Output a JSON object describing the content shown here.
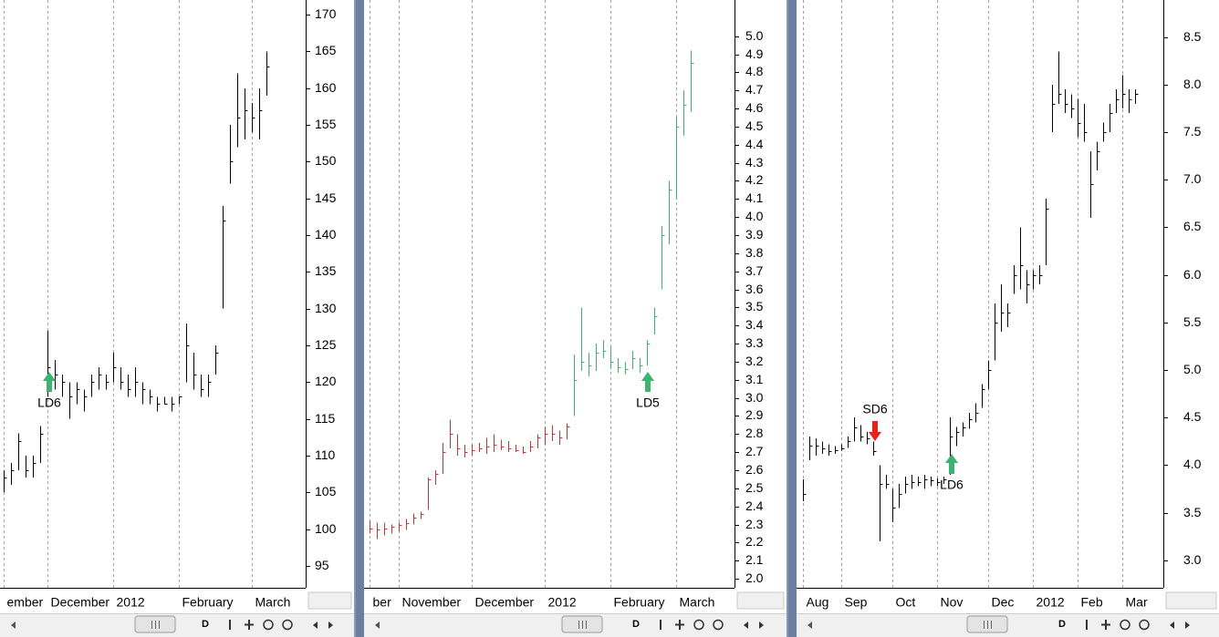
{
  "chart_data": [
    {
      "type": "ohlc",
      "categories": [
        "ember",
        null,
        null,
        null,
        null,
        null,
        "December",
        null,
        null,
        null,
        null,
        null,
        null,
        null,
        null,
        "2012",
        null,
        null,
        null,
        null,
        null,
        null,
        null,
        null,
        "February",
        null,
        null,
        null,
        null,
        null,
        null,
        null,
        null,
        null,
        "March",
        null,
        null
      ],
      "high": [
        108,
        109,
        113,
        110,
        110,
        114,
        127,
        123,
        121,
        120,
        120,
        119,
        121,
        122,
        121,
        124,
        122,
        121,
        122,
        120,
        119,
        118,
        118,
        118,
        118,
        128,
        124,
        121,
        121,
        125,
        144,
        155,
        162,
        160,
        158,
        160,
        165
      ],
      "low": [
        105,
        106,
        108,
        107,
        107,
        109,
        118,
        119,
        118,
        115,
        117,
        116,
        118,
        119,
        119,
        120,
        119,
        118,
        118,
        117,
        117,
        116,
        117,
        116,
        117,
        120,
        119,
        118,
        118,
        121,
        130,
        147,
        152,
        153,
        154,
        153,
        159
      ],
      "close": [
        107,
        108,
        112,
        108,
        109,
        113,
        122,
        121,
        120,
        118,
        119,
        118,
        120,
        121,
        120,
        122,
        120,
        119,
        120,
        119,
        118,
        117,
        117,
        117,
        118,
        125,
        121,
        119,
        120,
        124,
        142,
        150,
        156,
        157,
        156,
        157,
        163
      ],
      "color": "#000000",
      "ylim": [
        92,
        172
      ],
      "yticks": [
        95,
        100,
        105,
        110,
        115,
        120,
        125,
        130,
        135,
        140,
        145,
        150,
        155,
        160,
        165,
        170
      ],
      "grid": true,
      "annotations": [
        {
          "text": "LD6",
          "color": "#3cb371"
        }
      ]
    },
    {
      "type": "ohlc",
      "categories": [
        "ber",
        null,
        null,
        null,
        "November",
        null,
        null,
        null,
        null,
        null,
        null,
        null,
        null,
        null,
        "December",
        null,
        null,
        null,
        null,
        null,
        null,
        null,
        null,
        null,
        "2012",
        null,
        null,
        null,
        null,
        null,
        null,
        null,
        null,
        "February",
        null,
        null,
        null,
        null,
        null,
        null,
        null,
        null,
        "March",
        null,
        null
      ],
      "high": [
        2.32,
        2.31,
        2.31,
        2.3,
        2.31,
        2.33,
        2.36,
        2.37,
        2.56,
        2.6,
        2.75,
        2.88,
        2.8,
        2.74,
        2.74,
        2.75,
        2.78,
        2.8,
        2.77,
        2.76,
        2.74,
        2.73,
        2.76,
        2.8,
        2.84,
        2.85,
        2.82,
        2.86,
        3.24,
        3.5,
        3.25,
        3.3,
        3.32,
        3.28,
        3.22,
        3.2,
        3.26,
        3.22,
        3.32,
        3.5,
        3.95,
        4.2,
        4.55,
        4.7,
        4.92
      ],
      "low": [
        2.25,
        2.22,
        2.24,
        2.25,
        2.26,
        2.27,
        2.3,
        2.33,
        2.38,
        2.52,
        2.58,
        2.72,
        2.68,
        2.67,
        2.68,
        2.7,
        2.69,
        2.7,
        2.71,
        2.7,
        2.7,
        2.69,
        2.7,
        2.72,
        2.74,
        2.76,
        2.74,
        2.77,
        2.9,
        3.15,
        3.12,
        3.15,
        3.22,
        3.16,
        3.14,
        3.13,
        3.16,
        3.14,
        3.18,
        3.35,
        3.6,
        3.85,
        4.1,
        4.45,
        4.58
      ],
      "close": [
        2.28,
        2.27,
        2.28,
        2.29,
        2.3,
        2.31,
        2.34,
        2.36,
        2.55,
        2.58,
        2.7,
        2.8,
        2.72,
        2.7,
        2.71,
        2.72,
        2.73,
        2.74,
        2.73,
        2.72,
        2.71,
        2.7,
        2.73,
        2.78,
        2.8,
        2.8,
        2.78,
        2.84,
        3.1,
        3.2,
        3.18,
        3.25,
        3.26,
        3.2,
        3.17,
        3.16,
        3.22,
        3.18,
        3.3,
        3.45,
        3.9,
        4.15,
        4.5,
        4.62,
        4.85
      ],
      "colors": [
        "#cc3333",
        "#cc3333",
        "#cc3333",
        "#cc3333",
        "#cc3333",
        "#cc3333",
        "#cc3333",
        "#cc3333",
        "#cc3333",
        "#cc3333",
        "#cc3333",
        "#cc3333",
        "#cc3333",
        "#cc3333",
        "#cc3333",
        "#cc3333",
        "#cc3333",
        "#cc3333",
        "#cc3333",
        "#cc3333",
        "#cc3333",
        "#cc3333",
        "#cc3333",
        "#cc3333",
        "#cc3333",
        "#cc3333",
        "#cc3333",
        "#cc3333",
        "#3cb371",
        "#3cb371",
        "#3cb371",
        "#3cb371",
        "#3cb371",
        "#3cb371",
        "#3cb371",
        "#3cb371",
        "#3cb371",
        "#3cb371",
        "#3cb371",
        "#3cb371",
        "#3cb371",
        "#3cb371",
        "#3cb371",
        "#3cb371",
        "#3cb371"
      ],
      "ylim": [
        1.95,
        5.2
      ],
      "yticks": [
        {
          "value": 2,
          "label": "2.0"
        },
        2.1,
        2.2,
        2.3,
        2.4,
        2.5,
        2.6,
        2.7,
        2.8,
        2.9,
        {
          "value": 3,
          "label": "3.0"
        },
        3.1,
        3.2,
        3.3,
        3.4,
        3.5,
        3.6,
        3.7,
        3.8,
        3.9,
        {
          "value": 4,
          "label": "4.0"
        },
        4.1,
        4.2,
        4.3,
        4.4,
        4.5,
        4.6,
        4.7,
        4.8,
        4.9,
        {
          "value": 5,
          "label": "5.0"
        }
      ],
      "grid": true,
      "annotations": [
        {
          "text": "LD5",
          "color": "#3cb371"
        }
      ]
    },
    {
      "type": "ohlc",
      "categories": [
        "Aug",
        null,
        null,
        null,
        null,
        null,
        "Sep",
        null,
        null,
        null,
        null,
        null,
        null,
        null,
        "Oct",
        null,
        null,
        null,
        null,
        null,
        null,
        "Nov",
        null,
        null,
        null,
        null,
        null,
        null,
        null,
        "Dec",
        null,
        null,
        null,
        null,
        null,
        null,
        "2012",
        null,
        null,
        null,
        null,
        null,
        null,
        "Feb",
        null,
        null,
        null,
        null,
        null,
        null,
        "Mar",
        null,
        null
      ],
      "high": [
        3.85,
        4.3,
        4.28,
        4.25,
        4.22,
        4.2,
        4.22,
        4.3,
        4.5,
        4.42,
        4.35,
        4.25,
        4.0,
        3.9,
        3.75,
        3.8,
        3.88,
        3.9,
        3.88,
        3.9,
        3.88,
        3.86,
        3.88,
        4.5,
        4.4,
        4.45,
        4.55,
        4.65,
        4.85,
        5.1,
        5.7,
        5.9,
        5.7,
        6.1,
        6.5,
        6.05,
        6.05,
        6.1,
        6.8,
        8.0,
        8.35,
        7.95,
        7.9,
        7.85,
        7.8,
        7.3,
        7.4,
        7.6,
        7.8,
        7.95,
        8.1,
        7.95,
        7.95
      ],
      "low": [
        3.62,
        4.05,
        4.1,
        4.12,
        4.1,
        4.12,
        4.15,
        4.18,
        4.25,
        4.25,
        4.22,
        4.1,
        3.2,
        3.75,
        3.4,
        3.55,
        3.7,
        3.75,
        3.78,
        3.75,
        3.78,
        3.78,
        3.8,
        3.9,
        4.2,
        4.3,
        4.38,
        4.45,
        4.6,
        4.8,
        5.1,
        5.4,
        5.45,
        5.8,
        5.85,
        5.7,
        5.85,
        5.9,
        6.1,
        7.5,
        7.8,
        7.7,
        7.65,
        7.45,
        7.4,
        6.6,
        7.1,
        7.4,
        7.5,
        7.7,
        7.75,
        7.7,
        7.8
      ],
      "close": [
        3.7,
        4.2,
        4.2,
        4.18,
        4.15,
        4.16,
        4.18,
        4.25,
        4.4,
        4.3,
        4.28,
        4.15,
        3.8,
        3.8,
        3.55,
        3.7,
        3.8,
        3.82,
        3.82,
        3.85,
        3.84,
        3.82,
        3.85,
        4.3,
        4.35,
        4.4,
        4.48,
        4.55,
        4.8,
        5.0,
        5.5,
        5.6,
        5.6,
        6.0,
        6.1,
        5.9,
        6.0,
        6.0,
        6.7,
        7.8,
        7.9,
        7.8,
        7.75,
        7.6,
        7.5,
        6.95,
        7.3,
        7.5,
        7.7,
        7.85,
        7.9,
        7.85,
        7.9
      ],
      "color": "#000000",
      "ylim": [
        2.71,
        8.89
      ],
      "yticks": [
        {
          "value": 3,
          "label": "3.0"
        },
        3.5,
        {
          "value": 4,
          "label": "4.0"
        },
        4.5,
        {
          "value": 5,
          "label": "5.0"
        },
        5.5,
        {
          "value": 6,
          "label": "6.0"
        },
        6.5,
        {
          "value": 7,
          "label": "7.0"
        },
        7.5,
        {
          "value": 8,
          "label": "8.0"
        },
        8.5
      ],
      "grid": true,
      "annotations": [
        {
          "text": "SD6",
          "color": "#e8221a"
        },
        {
          "text": "LD6",
          "color": "#3cb371"
        }
      ]
    }
  ],
  "toolbar": {
    "button_label": "D"
  }
}
